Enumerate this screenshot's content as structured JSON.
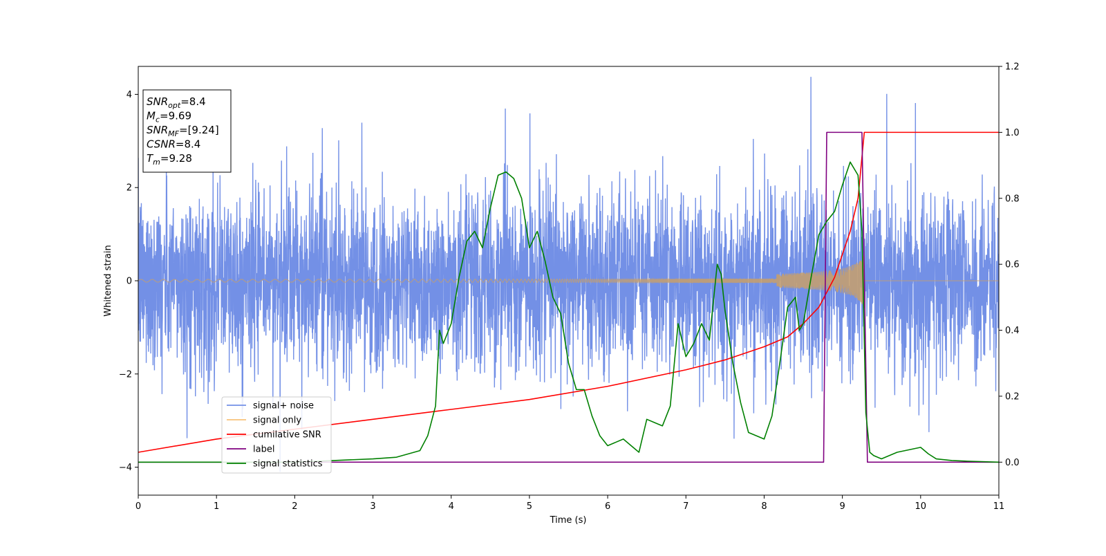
{
  "chart_data": {
    "type": "line",
    "xlabel": "Time (s)",
    "ylabel": "Whitened strain",
    "xlim": [
      0,
      11
    ],
    "ylim_left": [
      -4.6,
      4.6
    ],
    "ylim_right": [
      -0.1,
      1.2
    ],
    "x_ticks": [
      "0",
      "1",
      "2",
      "3",
      "4",
      "5",
      "6",
      "7",
      "8",
      "9",
      "10",
      "11"
    ],
    "y_ticks_left": [
      "−4",
      "−2",
      "0",
      "2",
      "4"
    ],
    "y_ticks_right": [
      "0.0",
      "0.2",
      "0.4",
      "0.6",
      "0.8",
      "1.0",
      "1.2"
    ],
    "annotation": {
      "lines": [
        {
          "base": "SNR",
          "sub": "opt",
          "value": "=8.4"
        },
        {
          "base": "M",
          "sub": "c",
          "value": "=9.69"
        },
        {
          "base": "SNR",
          "sub": "MF",
          "value": "=[9.24]"
        },
        {
          "base": "CSNR",
          "sub": "",
          "value": "=8.4"
        },
        {
          "base": "T",
          "sub": "m",
          "value": "=9.28"
        }
      ]
    },
    "legend": {
      "placement": "lower-left",
      "entries": [
        {
          "label": "signal+ noise",
          "color": "#7390e6"
        },
        {
          "label": "signal only",
          "color": "#f8c27a"
        },
        {
          "label": "cumilative SNR",
          "color": "#ff0000"
        },
        {
          "label": "label",
          "color": "#800080"
        },
        {
          "label": "signal statistics",
          "color": "#008000"
        }
      ]
    },
    "series": [
      {
        "name": "signal+ noise",
        "axis": "left",
        "color": "#7390e6",
        "description": "Gaussian-like whitened noise, roughly std 1, spikes up to about ±4, spanning 0–11 s"
      },
      {
        "name": "signal only",
        "axis": "left",
        "color": "#c8a06a",
        "chirp": {
          "t_start": 0,
          "t_merge": 9.28,
          "amp_start": 0.03,
          "amp_end": 0.7
        }
      },
      {
        "name": "cumilative SNR",
        "axis": "right",
        "color": "#ff0000",
        "x": [
          0,
          1,
          2,
          3,
          4,
          5,
          6,
          7,
          7.5,
          8,
          8.3,
          8.5,
          8.7,
          8.9,
          9.1,
          9.2,
          9.28,
          11
        ],
        "y": [
          0.03,
          0.07,
          0.1,
          0.13,
          0.16,
          0.19,
          0.23,
          0.28,
          0.31,
          0.35,
          0.38,
          0.42,
          0.47,
          0.56,
          0.7,
          0.8,
          1.0,
          1.0
        ]
      },
      {
        "name": "label",
        "axis": "right",
        "color": "#800080",
        "x": [
          0,
          8.76,
          8.8,
          9.25,
          9.32,
          11
        ],
        "y": [
          0,
          0,
          1,
          1,
          0,
          0
        ]
      },
      {
        "name": "signal statistics",
        "axis": "right",
        "color": "#008000",
        "x": [
          0,
          1,
          2,
          2.5,
          3,
          3.3,
          3.6,
          3.7,
          3.8,
          3.85,
          3.9,
          4,
          4.1,
          4.2,
          4.3,
          4.4,
          4.5,
          4.6,
          4.7,
          4.8,
          4.9,
          5,
          5.1,
          5.2,
          5.3,
          5.4,
          5.5,
          5.6,
          5.7,
          5.8,
          5.9,
          6,
          6.1,
          6.2,
          6.3,
          6.4,
          6.5,
          6.6,
          6.7,
          6.8,
          6.9,
          7,
          7.1,
          7.2,
          7.3,
          7.4,
          7.45,
          7.5,
          7.6,
          7.7,
          7.8,
          7.9,
          8,
          8.1,
          8.2,
          8.3,
          8.4,
          8.45,
          8.5,
          8.6,
          8.7,
          8.8,
          8.9,
          9,
          9.1,
          9.2,
          9.25,
          9.3,
          9.35,
          9.4,
          9.5,
          9.6,
          9.7,
          9.8,
          9.9,
          10,
          10.1,
          10.2,
          10.4,
          10.6,
          11
        ],
        "y": [
          0,
          0,
          0,
          0.005,
          0.01,
          0.015,
          0.035,
          0.08,
          0.17,
          0.4,
          0.36,
          0.42,
          0.56,
          0.67,
          0.7,
          0.65,
          0.77,
          0.87,
          0.88,
          0.86,
          0.8,
          0.65,
          0.7,
          0.61,
          0.5,
          0.45,
          0.3,
          0.22,
          0.22,
          0.14,
          0.08,
          0.05,
          0.06,
          0.07,
          0.05,
          0.03,
          0.13,
          0.12,
          0.11,
          0.17,
          0.42,
          0.32,
          0.36,
          0.42,
          0.37,
          0.6,
          0.57,
          0.46,
          0.3,
          0.18,
          0.09,
          0.08,
          0.07,
          0.14,
          0.3,
          0.47,
          0.5,
          0.4,
          0.42,
          0.56,
          0.69,
          0.73,
          0.76,
          0.84,
          0.91,
          0.87,
          0.7,
          0.15,
          0.03,
          0.02,
          0.01,
          0.02,
          0.03,
          0.035,
          0.04,
          0.045,
          0.025,
          0.01,
          0.005,
          0.003,
          0.0
        ]
      }
    ]
  }
}
